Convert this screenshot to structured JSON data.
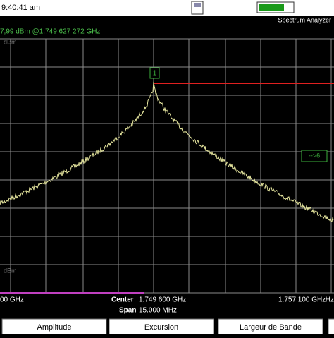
{
  "status_bar": {
    "time": "9:40:41 am"
  },
  "header": {
    "mode": "Spectrum Analyzer",
    "marker_readout": "7,99 dBm @1.749 627 272 GHz"
  },
  "plot": {
    "top_unit": "dBm",
    "bottom_unit": "dBm",
    "marker_label": "1",
    "offscreen_marker": "-->6"
  },
  "footer": {
    "start_freq": "00 GHz",
    "center_label": "Center",
    "center_value": "1.749 600 GHz",
    "stop_freq": "1.757 100 GHz",
    "span_label": "Span",
    "span_value": "15.000 MHz",
    "right_cut": "Hz"
  },
  "softkeys": [
    "Amplitude",
    "Excursion",
    "Largeur de Bande"
  ]
}
